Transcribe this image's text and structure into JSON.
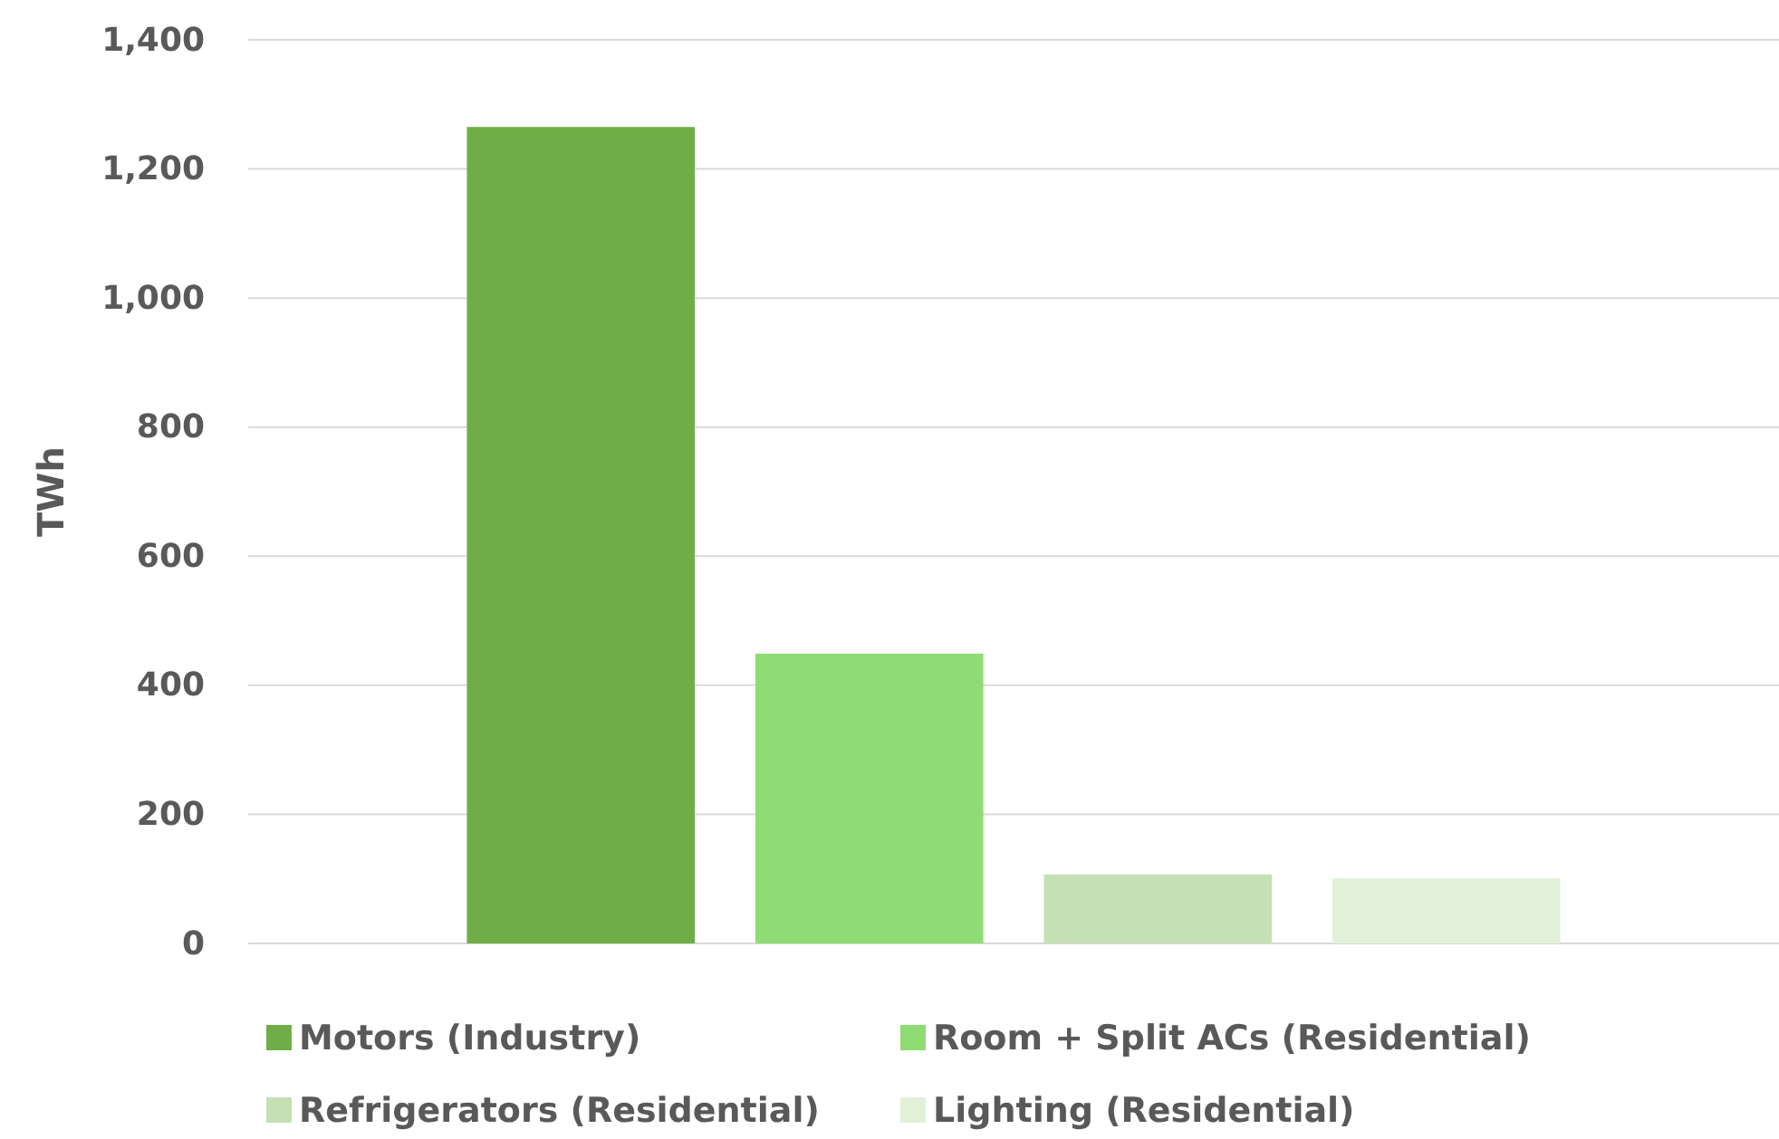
{
  "chart_data": {
    "type": "bar",
    "ylabel": "TWh",
    "categories": [
      null
    ],
    "series": [
      {
        "name": "Motors (Industry)",
        "color": "#70ad47",
        "values": [
          1265
        ]
      },
      {
        "name": "Room + Split ACs (Residential)",
        "color": "#8fdc74",
        "values": [
          449
        ]
      },
      {
        "name": "Refrigerators (Residential)",
        "color": "#c5e0b4",
        "values": [
          107
        ]
      },
      {
        "name": "Lighting (Residential)",
        "color": "#e2f0d9",
        "values": [
          101
        ]
      }
    ],
    "ylim": [
      0,
      1400
    ],
    "yticks": [
      0,
      200,
      400,
      600,
      800,
      {
        "value": 1000,
        "label": "1,000"
      },
      {
        "value": 1200,
        "label": "1,200"
      },
      {
        "value": 1400,
        "label": "1,400"
      }
    ],
    "grid": "y",
    "legend": "bottom"
  }
}
